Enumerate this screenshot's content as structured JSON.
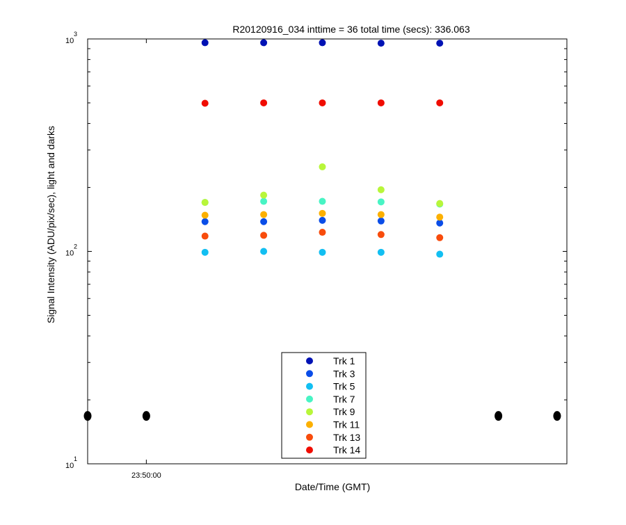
{
  "chart_data": {
    "type": "scatter",
    "title": "R20120916_034 inttime = 36 total time (secs): 336.063",
    "xlabel": "Date/Time (GMT)",
    "ylabel": "Signal Intensity (ADU/pix/sec), light and darks",
    "yscale": "log",
    "ylim": [
      10,
      1000
    ],
    "xlim": [
      "23:49:54",
      "23:50:43"
    ],
    "x_tick_labels": [
      "23:50:00"
    ],
    "x_tick_positions": [
      "23:50:00"
    ],
    "y_ticks": [
      {
        "base": "10",
        "exp": "1",
        "value": 10
      },
      {
        "base": "10",
        "exp": "2",
        "value": 100
      },
      {
        "base": "10",
        "exp": "3",
        "value": 1000
      }
    ],
    "grid": false,
    "legend_placement": "bottom-center",
    "x": [
      "23:50:06",
      "23:50:12",
      "23:50:18",
      "23:50:24",
      "23:50:30"
    ],
    "series": [
      {
        "name": "Trk 1",
        "color": "#0012b4",
        "values": [
          960,
          960,
          960,
          955,
          955
        ]
      },
      {
        "name": "Trk 3",
        "color": "#0a4de8",
        "values": [
          138,
          138,
          140,
          139,
          136
        ]
      },
      {
        "name": "Trk 5",
        "color": "#12bff2",
        "values": [
          99,
          100,
          99,
          99,
          97
        ]
      },
      {
        "name": "Trk 7",
        "color": "#48f4c4",
        "values": [
          170,
          172,
          172,
          171,
          167
        ]
      },
      {
        "name": "Trk 9",
        "color": "#b8f63a",
        "values": [
          170,
          184,
          250,
          195,
          168
        ]
      },
      {
        "name": "Trk 11",
        "color": "#fcb000",
        "values": [
          148,
          149,
          151,
          149,
          145
        ]
      },
      {
        "name": "Trk 13",
        "color": "#f84c0c",
        "values": [
          118,
          119,
          123,
          120,
          116
        ]
      },
      {
        "name": "Trk 14",
        "color": "#f00c00",
        "values": [
          498,
          500,
          500,
          500,
          500
        ]
      }
    ],
    "darks": {
      "color": "#000000",
      "x": [
        "23:49:54",
        "23:50:00",
        "23:50:36",
        "23:50:42"
      ],
      "value": 16.8
    }
  }
}
